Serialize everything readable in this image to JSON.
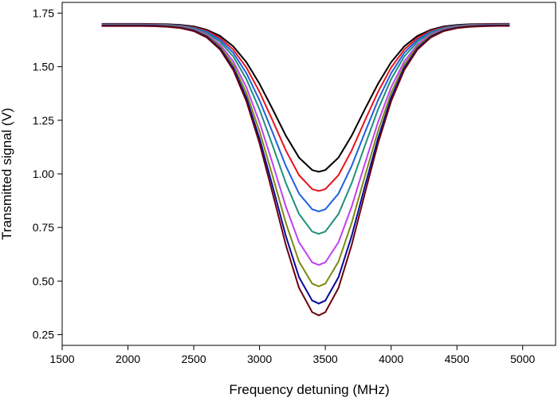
{
  "chart_data": {
    "type": "line",
    "x_label": "Frequency detuning (MHz)",
    "y_label": "Transmitted signal (V)",
    "x": [
      1800,
      1900,
      2000,
      2100,
      2200,
      2300,
      2400,
      2500,
      2600,
      2700,
      2800,
      2900,
      3000,
      3100,
      3200,
      3300,
      3400,
      3450,
      3500,
      3600,
      3700,
      3800,
      3900,
      4000,
      4100,
      4200,
      4300,
      4400,
      4500,
      4600,
      4700,
      4800,
      4900
    ],
    "series": [
      {
        "color": "#000000",
        "values": [
          1.7,
          1.7,
          1.7,
          1.7,
          1.699,
          1.698,
          1.695,
          1.688,
          1.672,
          1.644,
          1.595,
          1.521,
          1.42,
          1.301,
          1.178,
          1.076,
          1.018,
          1.01,
          1.018,
          1.076,
          1.178,
          1.301,
          1.42,
          1.521,
          1.595,
          1.644,
          1.672,
          1.688,
          1.695,
          1.698,
          1.699,
          1.7,
          1.7
        ]
      },
      {
        "color": "#e8141c",
        "values": [
          1.698,
          1.698,
          1.698,
          1.698,
          1.697,
          1.696,
          1.692,
          1.684,
          1.667,
          1.635,
          1.58,
          1.496,
          1.382,
          1.248,
          1.109,
          0.994,
          0.929,
          0.92,
          0.929,
          0.994,
          1.109,
          1.248,
          1.382,
          1.496,
          1.58,
          1.635,
          1.667,
          1.684,
          1.692,
          1.696,
          1.697,
          1.698,
          1.698
        ]
      },
      {
        "color": "#2060e0",
        "values": [
          1.697,
          1.697,
          1.697,
          1.697,
          1.696,
          1.695,
          1.691,
          1.681,
          1.662,
          1.626,
          1.565,
          1.47,
          1.343,
          1.192,
          1.037,
          0.908,
          0.835,
          0.825,
          0.835,
          0.908,
          1.037,
          1.192,
          1.343,
          1.47,
          1.565,
          1.626,
          1.662,
          1.681,
          1.691,
          1.695,
          1.696,
          1.697,
          1.697
        ]
      },
      {
        "color": "#1f8f7a",
        "values": [
          1.696,
          1.696,
          1.696,
          1.696,
          1.695,
          1.693,
          1.689,
          1.679,
          1.657,
          1.616,
          1.548,
          1.442,
          1.3,
          1.131,
          0.957,
          0.813,
          0.731,
          0.72,
          0.731,
          0.813,
          0.957,
          1.131,
          1.3,
          1.442,
          1.548,
          1.616,
          1.657,
          1.679,
          1.689,
          1.693,
          1.695,
          1.696,
          1.696
        ]
      },
      {
        "color": "#c040f0",
        "values": [
          1.695,
          1.695,
          1.695,
          1.695,
          1.694,
          1.692,
          1.687,
          1.675,
          1.65,
          1.604,
          1.525,
          1.404,
          1.24,
          1.047,
          0.847,
          0.681,
          0.587,
          0.575,
          0.587,
          0.681,
          0.847,
          1.047,
          1.24,
          1.404,
          1.525,
          1.604,
          1.65,
          1.675,
          1.687,
          1.692,
          1.694,
          1.695,
          1.695
        ]
      },
      {
        "color": "#7a8a10",
        "values": [
          1.694,
          1.694,
          1.694,
          1.694,
          1.693,
          1.691,
          1.685,
          1.672,
          1.645,
          1.595,
          1.509,
          1.377,
          1.199,
          0.988,
          0.771,
          0.591,
          0.488,
          0.475,
          0.488,
          0.591,
          0.771,
          0.988,
          1.199,
          1.377,
          1.509,
          1.595,
          1.645,
          1.672,
          1.685,
          1.691,
          1.693,
          1.694,
          1.694
        ]
      },
      {
        "color": "#0a0a9a",
        "values": [
          1.692,
          1.692,
          1.692,
          1.692,
          1.691,
          1.688,
          1.682,
          1.669,
          1.64,
          1.586,
          1.495,
          1.355,
          1.165,
          0.941,
          0.71,
          0.518,
          0.409,
          0.395,
          0.409,
          0.518,
          0.71,
          0.941,
          1.165,
          1.355,
          1.495,
          1.586,
          1.64,
          1.669,
          1.682,
          1.688,
          1.691,
          1.692,
          1.692
        ]
      },
      {
        "color": "#6a0010",
        "values": [
          1.69,
          1.69,
          1.69,
          1.69,
          1.689,
          1.686,
          1.68,
          1.666,
          1.636,
          1.58,
          1.485,
          1.339,
          1.142,
          0.908,
          0.668,
          0.468,
          0.355,
          0.34,
          0.355,
          0.468,
          0.668,
          0.908,
          1.142,
          1.339,
          1.485,
          1.58,
          1.636,
          1.666,
          1.68,
          1.686,
          1.689,
          1.69,
          1.69
        ]
      }
    ],
    "xlim": [
      1500,
      5250
    ],
    "ylim": [
      0.2,
      1.8
    ],
    "xticks": [
      1500,
      2000,
      2500,
      3000,
      3500,
      4000,
      4500,
      5000
    ],
    "yticks": [
      {
        "value": 0.25,
        "label": "0.25"
      },
      {
        "value": 0.5,
        "label": "0.50"
      },
      {
        "value": 0.75,
        "label": "0.75"
      },
      {
        "value": 1,
        "label": "1.00"
      },
      {
        "value": 1.25,
        "label": "1.25"
      },
      {
        "value": 1.5,
        "label": "1.50"
      },
      {
        "value": 1.75,
        "label": "1.75"
      }
    ]
  }
}
